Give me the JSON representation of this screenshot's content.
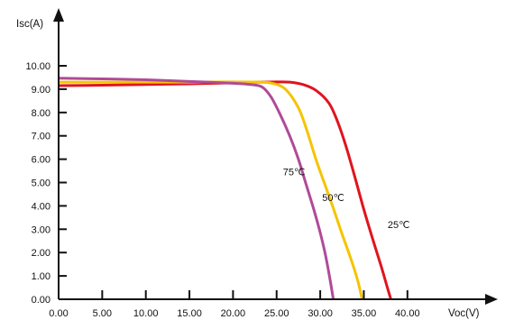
{
  "chart_data": {
    "type": "line",
    "title": "",
    "xlabel": "Voc(V)",
    "ylabel": "Isc(A)",
    "xlim": [
      0,
      45
    ],
    "ylim": [
      0,
      11
    ],
    "x_ticks": [
      0,
      5,
      10,
      15,
      20,
      25,
      30,
      35,
      40
    ],
    "x_tick_labels": [
      "0.00",
      "5.00",
      "10.00",
      "15.00",
      "20.00",
      "25.00",
      "30.00",
      "35.00",
      "40.00"
    ],
    "y_ticks": [
      0,
      1,
      2,
      3,
      4,
      5,
      6,
      7,
      8,
      9,
      10
    ],
    "y_tick_labels": [
      "0.00",
      "1.00",
      "2.00",
      "3.00",
      "4.00",
      "5.00",
      "6.00",
      "7.00",
      "8.00",
      "9.00",
      "10.00"
    ],
    "grid": false,
    "legend": "none",
    "series": [
      {
        "name": "25℃",
        "color": "#e0141e",
        "points": [
          [
            0,
            9.15
          ],
          [
            5,
            9.17
          ],
          [
            10,
            9.2
          ],
          [
            15,
            9.23
          ],
          [
            20,
            9.27
          ],
          [
            23,
            9.3
          ],
          [
            25,
            9.31
          ],
          [
            26.5,
            9.3
          ],
          [
            28,
            9.2
          ],
          [
            29.5,
            8.95
          ],
          [
            31,
            8.4
          ],
          [
            32,
            7.6
          ],
          [
            33,
            6.5
          ],
          [
            34,
            5.2
          ],
          [
            35,
            3.85
          ],
          [
            36,
            2.6
          ],
          [
            37,
            1.4
          ],
          [
            37.7,
            0.5
          ],
          [
            38.1,
            0
          ]
        ]
      },
      {
        "name": "50℃",
        "color": "#f5c400",
        "points": [
          [
            0,
            9.3
          ],
          [
            5,
            9.3
          ],
          [
            10,
            9.3
          ],
          [
            15,
            9.3
          ],
          [
            20,
            9.31
          ],
          [
            23,
            9.3
          ],
          [
            24.5,
            9.25
          ],
          [
            26,
            9.0
          ],
          [
            27.5,
            8.2
          ],
          [
            28.5,
            7.2
          ],
          [
            29.5,
            6.0
          ],
          [
            30.5,
            4.95
          ],
          [
            31.5,
            3.9
          ],
          [
            32.5,
            2.8
          ],
          [
            33.5,
            1.75
          ],
          [
            34.3,
            0.8
          ],
          [
            34.8,
            0
          ]
        ]
      },
      {
        "name": "75℃",
        "color": "#b04a98",
        "points": [
          [
            0,
            9.47
          ],
          [
            5,
            9.44
          ],
          [
            10,
            9.4
          ],
          [
            15,
            9.33
          ],
          [
            20,
            9.25
          ],
          [
            22,
            9.2
          ],
          [
            23.3,
            9.1
          ],
          [
            24.3,
            8.7
          ],
          [
            25.3,
            8.0
          ],
          [
            26.5,
            7.0
          ],
          [
            27.5,
            6.0
          ],
          [
            28.4,
            4.9
          ],
          [
            29.3,
            3.8
          ],
          [
            30,
            2.85
          ],
          [
            30.6,
            1.9
          ],
          [
            31.1,
            0.9
          ],
          [
            31.5,
            0
          ]
        ]
      }
    ],
    "annotations": [
      {
        "text": "25℃",
        "series": "25℃",
        "x": 39.0,
        "y": 3.05
      },
      {
        "text": "50℃",
        "series": "50℃",
        "x": 31.5,
        "y": 4.2
      },
      {
        "text": "75℃",
        "series": "75℃",
        "x": 27.0,
        "y": 5.3
      }
    ]
  }
}
